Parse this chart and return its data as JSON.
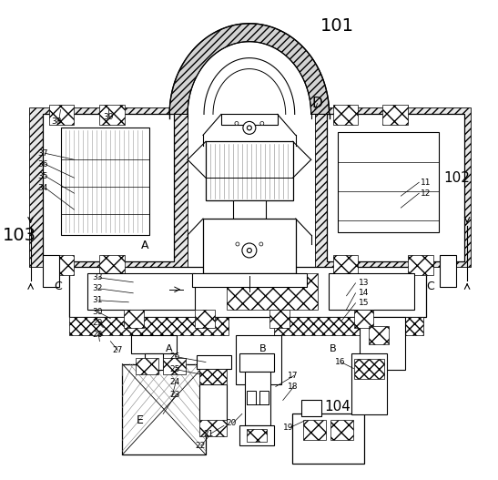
{
  "bg_color": "#ffffff",
  "lc": "#000000",
  "labels_big": [
    [
      "101",
      370,
      28,
      14
    ],
    [
      "102",
      502,
      195,
      11
    ],
    [
      "103",
      20,
      258,
      14
    ],
    [
      "104",
      370,
      447,
      11
    ]
  ],
  "labels_letter": [
    [
      "D",
      348,
      113,
      11
    ],
    [
      "A",
      158,
      270,
      9
    ],
    [
      "A",
      185,
      383,
      8
    ],
    [
      "B",
      288,
      383,
      8
    ],
    [
      "B",
      365,
      383,
      8
    ],
    [
      "C",
      62,
      315,
      9
    ],
    [
      "C",
      472,
      315,
      9
    ],
    [
      "E",
      152,
      462,
      9
    ]
  ],
  "labels_small": [
    [
      "38",
      55,
      133
    ],
    [
      "39",
      112,
      128
    ],
    [
      "37",
      40,
      168
    ],
    [
      "36",
      40,
      180
    ],
    [
      "35",
      40,
      193
    ],
    [
      "34",
      40,
      206
    ],
    [
      "33",
      100,
      305
    ],
    [
      "32",
      100,
      317
    ],
    [
      "31",
      100,
      330
    ],
    [
      "30",
      100,
      343
    ],
    [
      "29",
      100,
      355
    ],
    [
      "28",
      100,
      368
    ],
    [
      "27",
      122,
      385
    ],
    [
      "26",
      185,
      392
    ],
    [
      "25",
      185,
      406
    ],
    [
      "24",
      185,
      420
    ],
    [
      "23",
      185,
      434
    ],
    [
      "22",
      213,
      490
    ],
    [
      "21",
      222,
      477
    ],
    [
      "20",
      247,
      465
    ],
    [
      "19",
      310,
      470
    ],
    [
      "18",
      315,
      425
    ],
    [
      "17",
      315,
      413
    ],
    [
      "16",
      367,
      398
    ],
    [
      "15",
      393,
      333
    ],
    [
      "14",
      393,
      322
    ],
    [
      "13",
      393,
      311
    ],
    [
      "12",
      462,
      212
    ],
    [
      "11",
      462,
      200
    ]
  ]
}
